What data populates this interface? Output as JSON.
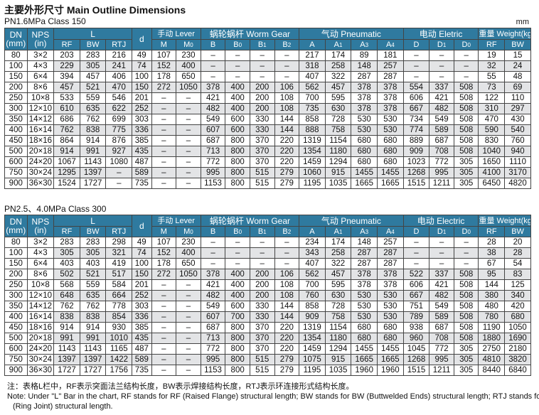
{
  "title": "主要外形尺寸 Main Outline Dimensions",
  "unit": "mm",
  "headers": {
    "dn": "DN",
    "dn_unit": "(mm)",
    "nps": "NPS",
    "nps_unit": "(in)",
    "l": "L",
    "d": "d",
    "lever": "手动 Lever",
    "worm": "蜗轮蜗杆 Worm Gear",
    "pneumatic": "气动 Pneumatic",
    "electric": "电动 Eletric",
    "weight": "重量 Weight(kg)"
  },
  "table1": {
    "subtitle": "PN1.6MPa  Class 150",
    "electric_label": "电动 Eletric",
    "subheads": [
      "RF",
      "BW",
      "RTJ",
      "M",
      "M0",
      "B",
      "B0",
      "B1",
      "B2",
      "A",
      "A1",
      "A3",
      "A4",
      "D",
      "D1",
      "D0",
      "RF",
      "BW"
    ],
    "rows": [
      [
        "80",
        "3×2",
        "203",
        "283",
        "216",
        "49",
        "107",
        "230",
        "–",
        "–",
        "–",
        "–",
        "217",
        "174",
        "89",
        "181",
        "–",
        "–",
        "–",
        "19",
        "15"
      ],
      [
        "100",
        "4×3",
        "229",
        "305",
        "241",
        "74",
        "152",
        "400",
        "–",
        "–",
        "–",
        "–",
        "318",
        "258",
        "148",
        "257",
        "–",
        "–",
        "–",
        "32",
        "24"
      ],
      [
        "150",
        "6×4",
        "394",
        "457",
        "406",
        "100",
        "178",
        "650",
        "–",
        "–",
        "–",
        "–",
        "407",
        "322",
        "287",
        "287",
        "–",
        "–",
        "–",
        "55",
        "48"
      ],
      [
        "200",
        "8×6",
        "457",
        "521",
        "470",
        "150",
        "272",
        "1050",
        "378",
        "400",
        "200",
        "106",
        "562",
        "457",
        "378",
        "378",
        "554",
        "337",
        "508",
        "73",
        "69"
      ],
      [
        "250",
        "10×8",
        "533",
        "559",
        "546",
        "201",
        "–",
        "–",
        "421",
        "400",
        "200",
        "108",
        "700",
        "595",
        "378",
        "378",
        "606",
        "421",
        "508",
        "122",
        "110"
      ],
      [
        "300",
        "12×10",
        "610",
        "635",
        "622",
        "252",
        "–",
        "–",
        "482",
        "400",
        "200",
        "108",
        "735",
        "630",
        "378",
        "378",
        "667",
        "482",
        "508",
        "310",
        "297"
      ],
      [
        "350",
        "14×12",
        "686",
        "762",
        "699",
        "303",
        "–",
        "–",
        "549",
        "600",
        "330",
        "144",
        "858",
        "728",
        "530",
        "530",
        "734",
        "549",
        "508",
        "470",
        "430"
      ],
      [
        "400",
        "16×14",
        "762",
        "838",
        "775",
        "336",
        "–",
        "–",
        "607",
        "600",
        "330",
        "144",
        "888",
        "758",
        "530",
        "530",
        "774",
        "589",
        "508",
        "590",
        "540"
      ],
      [
        "450",
        "18×16",
        "864",
        "914",
        "876",
        "385",
        "–",
        "–",
        "687",
        "800",
        "370",
        "220",
        "1319",
        "1154",
        "680",
        "680",
        "889",
        "687",
        "508",
        "830",
        "760"
      ],
      [
        "500",
        "20×18",
        "914",
        "991",
        "927",
        "435",
        "–",
        "–",
        "713",
        "800",
        "370",
        "220",
        "1354",
        "1180",
        "680",
        "680",
        "909",
        "708",
        "508",
        "1040",
        "940"
      ],
      [
        "600",
        "24×20",
        "1067",
        "1143",
        "1080",
        "487",
        "–",
        "–",
        "772",
        "800",
        "370",
        "220",
        "1459",
        "1294",
        "680",
        "680",
        "1023",
        "772",
        "305",
        "1650",
        "1110"
      ],
      [
        "750",
        "30×24",
        "1295",
        "1397",
        "–",
        "589",
        "–",
        "–",
        "995",
        "800",
        "515",
        "279",
        "1060",
        "915",
        "1455",
        "1455",
        "1268",
        "995",
        "305",
        "4100",
        "3170"
      ],
      [
        "900",
        "36×30",
        "1524",
        "1727",
        "–",
        "735",
        "–",
        "–",
        "1153",
        "800",
        "515",
        "279",
        "1195",
        "1035",
        "1665",
        "1665",
        "1515",
        "1211",
        "305",
        "6450",
        "4820"
      ]
    ]
  },
  "table2": {
    "subtitle": "PN2.5、4.0MPa  Class 300",
    "electric_label": "电动 Electric",
    "subheads": [
      "RF",
      "BW",
      "RTJ",
      "M",
      "M0",
      "B",
      "B0",
      "B1",
      "B2",
      "A",
      "A1",
      "A3",
      "A4",
      "D",
      "D1",
      "D0",
      "RF",
      "BW"
    ],
    "rows": [
      [
        "80",
        "3×2",
        "283",
        "283",
        "298",
        "49",
        "107",
        "230",
        "–",
        "–",
        "–",
        "–",
        "234",
        "174",
        "148",
        "257",
        "–",
        "–",
        "–",
        "28",
        "20"
      ],
      [
        "100",
        "4×3",
        "305",
        "305",
        "321",
        "74",
        "152",
        "400",
        "–",
        "–",
        "–",
        "–",
        "343",
        "258",
        "287",
        "287",
        "–",
        "–",
        "–",
        "38",
        "28"
      ],
      [
        "150",
        "6×4",
        "403",
        "403",
        "419",
        "100",
        "178",
        "650",
        "–",
        "–",
        "–",
        "–",
        "407",
        "322",
        "287",
        "287",
        "–",
        "–",
        "–",
        "67",
        "54"
      ],
      [
        "200",
        "8×6",
        "502",
        "521",
        "517",
        "150",
        "272",
        "1050",
        "378",
        "400",
        "200",
        "106",
        "562",
        "457",
        "378",
        "378",
        "522",
        "337",
        "508",
        "95",
        "83"
      ],
      [
        "250",
        "10×8",
        "568",
        "559",
        "584",
        "201",
        "–",
        "–",
        "421",
        "400",
        "200",
        "108",
        "700",
        "595",
        "378",
        "378",
        "606",
        "421",
        "508",
        "144",
        "125"
      ],
      [
        "300",
        "12×10",
        "648",
        "635",
        "664",
        "252",
        "–",
        "–",
        "482",
        "400",
        "200",
        "108",
        "760",
        "630",
        "530",
        "530",
        "667",
        "482",
        "508",
        "380",
        "340"
      ],
      [
        "350",
        "14×12",
        "762",
        "762",
        "778",
        "303",
        "–",
        "–",
        "549",
        "600",
        "330",
        "144",
        "858",
        "728",
        "530",
        "530",
        "751",
        "549",
        "508",
        "480",
        "420"
      ],
      [
        "400",
        "16×14",
        "838",
        "838",
        "854",
        "336",
        "–",
        "–",
        "607",
        "700",
        "330",
        "144",
        "909",
        "758",
        "530",
        "530",
        "789",
        "589",
        "508",
        "780",
        "680"
      ],
      [
        "450",
        "18×16",
        "914",
        "914",
        "930",
        "385",
        "–",
        "–",
        "687",
        "800",
        "370",
        "220",
        "1319",
        "1154",
        "680",
        "680",
        "938",
        "687",
        "508",
        "1190",
        "1050"
      ],
      [
        "500",
        "20×18",
        "991",
        "991",
        "1010",
        "435",
        "–",
        "–",
        "713",
        "800",
        "370",
        "220",
        "1354",
        "1180",
        "680",
        "680",
        "960",
        "708",
        "508",
        "1880",
        "1690"
      ],
      [
        "600",
        "24×20",
        "1143",
        "1143",
        "1165",
        "487",
        "–",
        "–",
        "772",
        "800",
        "370",
        "220",
        "1459",
        "1294",
        "1455",
        "1455",
        "1045",
        "772",
        "305",
        "2750",
        "2180"
      ],
      [
        "750",
        "30×24",
        "1397",
        "1397",
        "1422",
        "589",
        "–",
        "–",
        "995",
        "800",
        "515",
        "279",
        "1075",
        "915",
        "1665",
        "1665",
        "1268",
        "995",
        "305",
        "4810",
        "3820"
      ],
      [
        "900",
        "36×30",
        "1727",
        "1727",
        "1756",
        "735",
        "–",
        "–",
        "1153",
        "800",
        "515",
        "279",
        "1195",
        "1035",
        "1960",
        "1960",
        "1515",
        "1211",
        "305",
        "8440",
        "6840"
      ]
    ]
  },
  "notes": {
    "line1": "注：表格L栏中，RF表示突面法兰结构长度，BW表示焊接结构长度，RTJ表示环连接形式结构长度。",
    "line2": "Note: Under \"L\" Bar in the chart, RF stands for RF (Raised Flange) structural length; BW stands for BW (Buttwelded Ends) structural length; RTJ stands for RTJ",
    "line3": "(Ring Joint) structural length."
  }
}
